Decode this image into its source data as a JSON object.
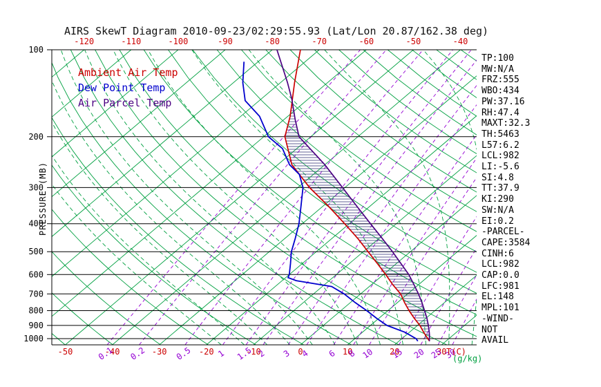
{
  "title": "AIRS SkewT Diagram 2010-09-23/02:29:55.93 (Lat/Lon 20.87/162.38 deg)",
  "legend": [
    {
      "label": "Ambient Air Temp",
      "color": "#cc0000"
    },
    {
      "label": "Dew Point Temp",
      "color": "#0000cd"
    },
    {
      "label": "Air Parcel Temp",
      "color": "#4b0082"
    }
  ],
  "stats_panel": {
    "lines": [
      "TP:100",
      "MW:N/A",
      "FRZ:555",
      "WBO:434",
      "PW:37.16",
      "RH:47.4",
      "MAXT:32.3",
      "TH:5463",
      "L57:6.2",
      "LCL:982",
      "LI:-5.6",
      "SI:4.8",
      "TT:37.9",
      "KI:290",
      "SW:N/A",
      "EI:0.2",
      "-PARCEL-",
      "CAPE:3584",
      "CINH:6",
      "LCL:982",
      "CAP:0.0",
      "LFC:981",
      "EL:148",
      "MPL:101",
      "-WIND-",
      "NOT",
      "AVAIL"
    ]
  },
  "chart_data": {
    "type": "line",
    "projection": "skewT-logP",
    "y_axis": {
      "label": "PRESSURE (MB)",
      "scale": "log",
      "ticks": [
        100,
        200,
        300,
        400,
        500,
        600,
        700,
        800,
        900,
        1000
      ],
      "range": [
        100,
        1050
      ]
    },
    "x_axis": {
      "label": "T(C)",
      "skewed": true,
      "top_ticks": [
        -120,
        -110,
        -100,
        -90,
        -80,
        -70,
        -60,
        -50,
        -40
      ],
      "bottom_ticks": [
        -50,
        -40,
        -30,
        -20,
        -10,
        0,
        10,
        20,
        30
      ]
    },
    "mixing_ratio": {
      "label": "(g/kg)",
      "ticks": [
        0.1,
        0.2,
        0.5,
        1,
        1.5,
        2,
        3,
        4,
        6,
        8,
        10,
        15,
        20,
        25,
        30
      ]
    },
    "series": [
      {
        "name": "Ambient Air Temp",
        "color": "#cc0000",
        "points_p_t": [
          [
            1020,
            26.5
          ],
          [
            1000,
            25.5
          ],
          [
            950,
            23.0
          ],
          [
            900,
            20.5
          ],
          [
            850,
            17.5
          ],
          [
            800,
            14.5
          ],
          [
            750,
            11.5
          ],
          [
            700,
            8.5
          ],
          [
            650,
            4.5
          ],
          [
            600,
            0.5
          ],
          [
            550,
            -4.0
          ],
          [
            500,
            -9.0
          ],
          [
            450,
            -14.5
          ],
          [
            400,
            -21.0
          ],
          [
            350,
            -28.5
          ],
          [
            300,
            -37.5
          ],
          [
            250,
            -47.0
          ],
          [
            200,
            -55.5
          ],
          [
            170,
            -59.5
          ],
          [
            150,
            -63.0
          ],
          [
            130,
            -67.0
          ],
          [
            100,
            -74.0
          ]
        ]
      },
      {
        "name": "Dew Point Temp",
        "color": "#0000cd",
        "points_p_t": [
          [
            1020,
            24.0
          ],
          [
            1000,
            23.0
          ],
          [
            950,
            19.0
          ],
          [
            900,
            13.5
          ],
          [
            850,
            9.5
          ],
          [
            800,
            5.5
          ],
          [
            750,
            1.0
          ],
          [
            700,
            -3.5
          ],
          [
            660,
            -8.0
          ],
          [
            630,
            -17.0
          ],
          [
            615,
            -19.5
          ],
          [
            600,
            -20.0
          ],
          [
            550,
            -22.5
          ],
          [
            500,
            -25.3
          ],
          [
            450,
            -27.8
          ],
          [
            400,
            -30.7
          ],
          [
            350,
            -34.5
          ],
          [
            300,
            -38.9
          ],
          [
            270,
            -43.0
          ],
          [
            250,
            -47.5
          ],
          [
            220,
            -53.0
          ],
          [
            200,
            -59.0
          ],
          [
            170,
            -66.0
          ],
          [
            150,
            -73.0
          ],
          [
            130,
            -78.0
          ],
          [
            110,
            -83.0
          ]
        ]
      },
      {
        "name": "Air Parcel Temp",
        "color": "#4b0082",
        "points_p_t": [
          [
            1020,
            26.5
          ],
          [
            1000,
            25.8
          ],
          [
            982,
            25.3
          ],
          [
            950,
            24.2
          ],
          [
            900,
            22.3
          ],
          [
            850,
            20.2
          ],
          [
            800,
            17.8
          ],
          [
            750,
            15.2
          ],
          [
            700,
            12.3
          ],
          [
            650,
            9.0
          ],
          [
            600,
            5.4
          ],
          [
            550,
            1.0
          ],
          [
            500,
            -3.8
          ],
          [
            450,
            -9.3
          ],
          [
            400,
            -15.5
          ],
          [
            350,
            -22.5
          ],
          [
            300,
            -30.5
          ],
          [
            250,
            -40.0
          ],
          [
            200,
            -52.5
          ],
          [
            175,
            -57.5
          ],
          [
            148,
            -63.5
          ],
          [
            130,
            -68.5
          ],
          [
            100,
            -79.0
          ]
        ]
      }
    ],
    "cape_hatch": {
      "between": [
        "Ambient Air Temp",
        "Air Parcel Temp"
      ],
      "from_mb": 982,
      "to_mb": 148
    },
    "background": {
      "isotherm_color": "#00a040",
      "isotherm_step_c": 10,
      "dry_adiabat_step_k": 10,
      "moist_adiabat_start_c": [
        -20,
        -15,
        -10,
        -5,
        0,
        5,
        10,
        15,
        20,
        25,
        30,
        35,
        40
      ],
      "mixing_ratio_color": "#9400d3",
      "pressure_line_color": "#000000",
      "hatch_color": "#2d2d70"
    }
  }
}
